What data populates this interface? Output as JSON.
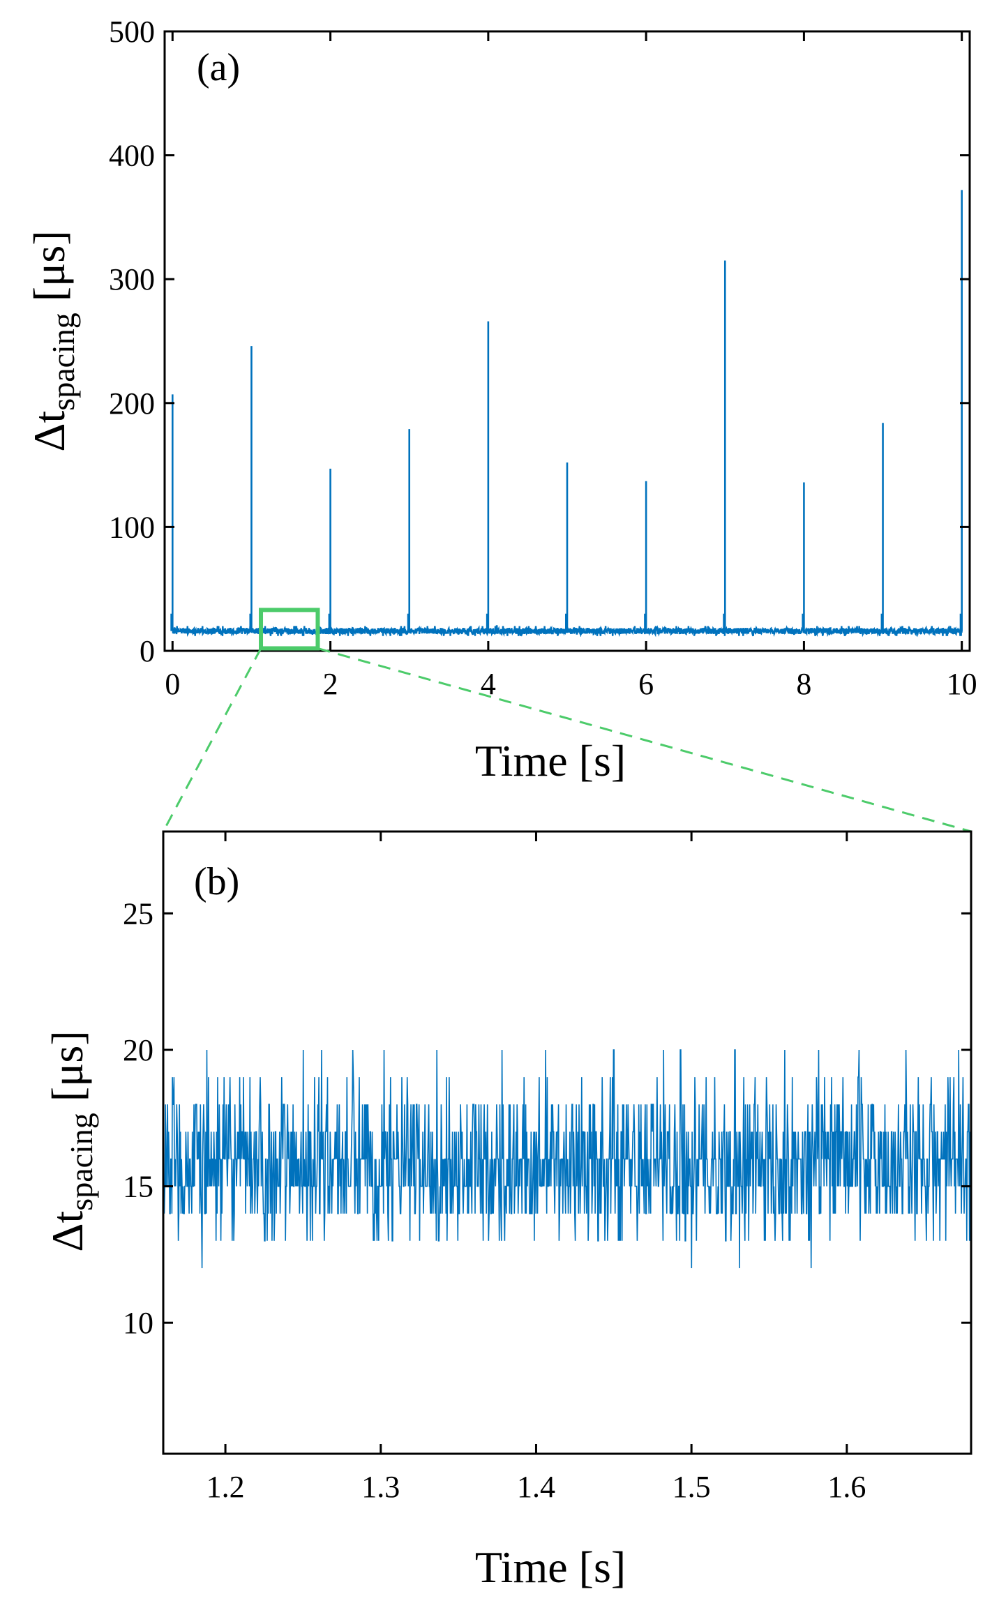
{
  "chart_data": [
    {
      "type": "line",
      "panel_label": "(a)",
      "xlabel": "Time [s]",
      "ylabel": {
        "base": "Δt",
        "subscript": "spacing",
        "unit": " [μs]"
      },
      "xlim": [
        -0.1,
        10.1
      ],
      "ylim": [
        0,
        500
      ],
      "xticks": [
        0,
        2,
        4,
        6,
        8,
        10
      ],
      "xtick_labels": [
        "0",
        "2",
        "4",
        "6",
        "8",
        "10"
      ],
      "yticks": [
        0,
        100,
        200,
        300,
        400,
        500
      ],
      "ytick_labels": [
        "0",
        "100",
        "200",
        "300",
        "400",
        "500"
      ],
      "baseline": {
        "mean": 16,
        "min": 12,
        "max": 20
      },
      "spikes": [
        {
          "x": 0.0,
          "y": 207
        },
        {
          "x": 1.0,
          "y": 246
        },
        {
          "x": 2.0,
          "y": 147
        },
        {
          "x": 3.0,
          "y": 179
        },
        {
          "x": 4.0,
          "y": 266
        },
        {
          "x": 5.0,
          "y": 152
        },
        {
          "x": 6.0,
          "y": 137
        },
        {
          "x": 7.0,
          "y": 315
        },
        {
          "x": 8.0,
          "y": 136
        },
        {
          "x": 9.0,
          "y": 184
        },
        {
          "x": 10.0,
          "y": 372
        }
      ],
      "zoom_region": {
        "x": [
          1.12,
          1.84
        ],
        "y": [
          2,
          33
        ]
      },
      "line_color": "#0072BD",
      "highlight_color": "#4CCB6A"
    },
    {
      "type": "line",
      "panel_label": "(b)",
      "xlabel": "Time [s]",
      "ylabel": {
        "base": "Δt",
        "subscript": "spacing",
        "unit": " [μs]"
      },
      "xlim": [
        1.16,
        1.68
      ],
      "ylim": [
        5.2,
        28
      ],
      "xticks": [
        1.2,
        1.3,
        1.4,
        1.5,
        1.6
      ],
      "xtick_labels": [
        "1.2",
        "1.3",
        "1.4",
        "1.5",
        "1.6"
      ],
      "yticks": [
        10,
        15,
        20,
        25
      ],
      "ytick_labels": [
        "10",
        "15",
        "20",
        "25"
      ],
      "baseline": {
        "mean": 15.8,
        "min": 12,
        "max": 20
      },
      "rare_highs": [
        1.188,
        1.25,
        1.262,
        1.282,
        1.302,
        1.336,
        1.378,
        1.406,
        1.45,
        1.482,
        1.493,
        1.528,
        1.56,
        1.582,
        1.608,
        1.638,
        1.672
      ],
      "rare_lows": [
        1.185,
        1.5,
        1.531,
        1.577
      ],
      "line_color": "#0072BD"
    }
  ]
}
